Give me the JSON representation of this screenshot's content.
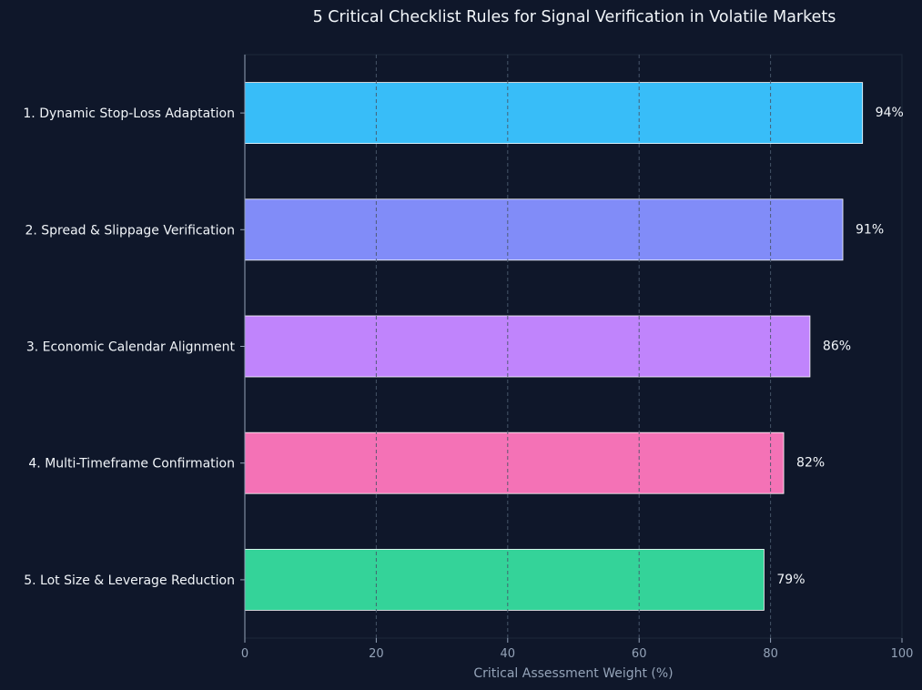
{
  "chart_data": {
    "type": "bar",
    "orientation": "horizontal",
    "title": "5 Critical Checklist Rules for Signal Verification in Volatile Markets",
    "xlabel": "Critical Assessment Weight (%)",
    "ylabel": "",
    "xlim": [
      0,
      100
    ],
    "xticks": [
      0,
      20,
      40,
      60,
      80,
      100
    ],
    "grid": true,
    "categories": [
      "1. Dynamic Stop-Loss Adaptation",
      "2. Spread & Slippage Verification",
      "3. Economic Calendar Alignment",
      "4. Multi-Timeframe Confirmation",
      "5. Lot Size & Leverage Reduction"
    ],
    "values": [
      94,
      91,
      86,
      82,
      79
    ],
    "value_labels": [
      "94%",
      "91%",
      "86%",
      "82%",
      "79%"
    ],
    "colors": [
      "#38bdf8",
      "#818cf8",
      "#c084fc",
      "#f472b6",
      "#34d399"
    ]
  },
  "theme": {
    "background": "#0f172a",
    "text": "#f1f5f9",
    "muted": "#94a3b8",
    "grid": "#475569"
  }
}
